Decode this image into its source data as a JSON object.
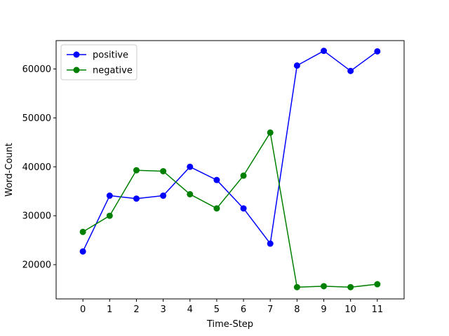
{
  "chart_data": {
    "type": "line",
    "title": "",
    "xlabel": "Time-Step",
    "ylabel": "Word-Count",
    "x": [
      0,
      1,
      2,
      3,
      4,
      5,
      6,
      7,
      8,
      9,
      10,
      11
    ],
    "xlim": [
      -1,
      12
    ],
    "ylim": [
      13000,
      65800
    ],
    "yticks": [
      20000,
      30000,
      40000,
      50000,
      60000
    ],
    "legend_position": "top-left",
    "grid": false,
    "series": [
      {
        "name": "positive",
        "color": "#0000ff",
        "values": [
          22700,
          34100,
          33500,
          34100,
          40000,
          37300,
          31500,
          24300,
          60700,
          63700,
          59600,
          63600
        ]
      },
      {
        "name": "negative",
        "color": "#008000",
        "values": [
          26700,
          30000,
          39300,
          39100,
          34400,
          31500,
          38200,
          47000,
          15400,
          15600,
          15400,
          16000
        ]
      }
    ]
  }
}
